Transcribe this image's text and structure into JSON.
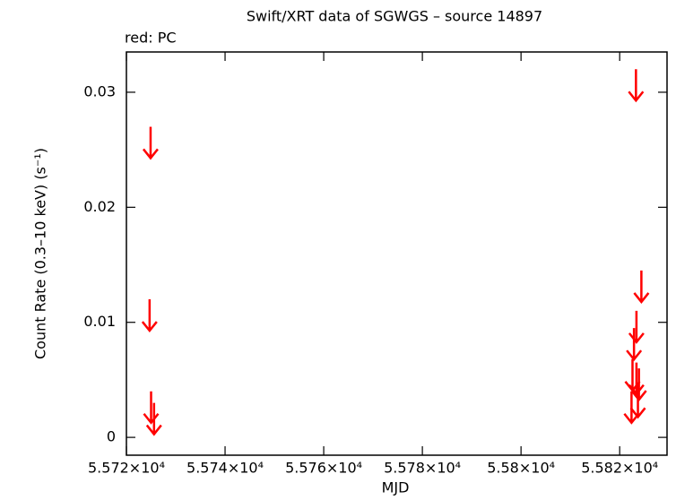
{
  "chart_data": {
    "type": "scatter",
    "title": "Swift/XRT data of SGWGS – source 14897",
    "subtitle": "red: PC",
    "x_label": "MJD",
    "y_label": "Count Rate (0.3–10 keV) (s⁻¹)",
    "marker": "upper-limit-arrow",
    "series": [
      {
        "color": "#ff0000",
        "x": [
          55724.9,
          55724.7,
          55725.0,
          55725.6,
          55823.3,
          55824.4,
          55823.4,
          55822.9,
          55822.6,
          55823.4,
          55823.9,
          55823.7,
          55822.4
        ],
        "values": [
          0.027,
          0.012,
          0.004,
          0.003,
          0.032,
          0.0145,
          0.011,
          0.0095,
          0.0068,
          0.0065,
          0.006,
          0.0045,
          0.004
        ]
      }
    ],
    "xlim": [
      55720,
      55829.6
    ],
    "ylim": [
      -0.00155,
      0.0335
    ],
    "xticks": [
      {
        "value": 55720,
        "label": "5.572×10⁴"
      },
      {
        "value": 55740,
        "label": "5.574×10⁴"
      },
      {
        "value": 55760,
        "label": "5.576×10⁴"
      },
      {
        "value": 55780,
        "label": "5.578×10⁴"
      },
      {
        "value": 55800,
        "label": "5.58×10⁴"
      },
      {
        "value": 55820,
        "label": "5.582×10⁴"
      }
    ],
    "yticks": [
      0,
      0.01,
      0.02,
      0.03
    ]
  }
}
